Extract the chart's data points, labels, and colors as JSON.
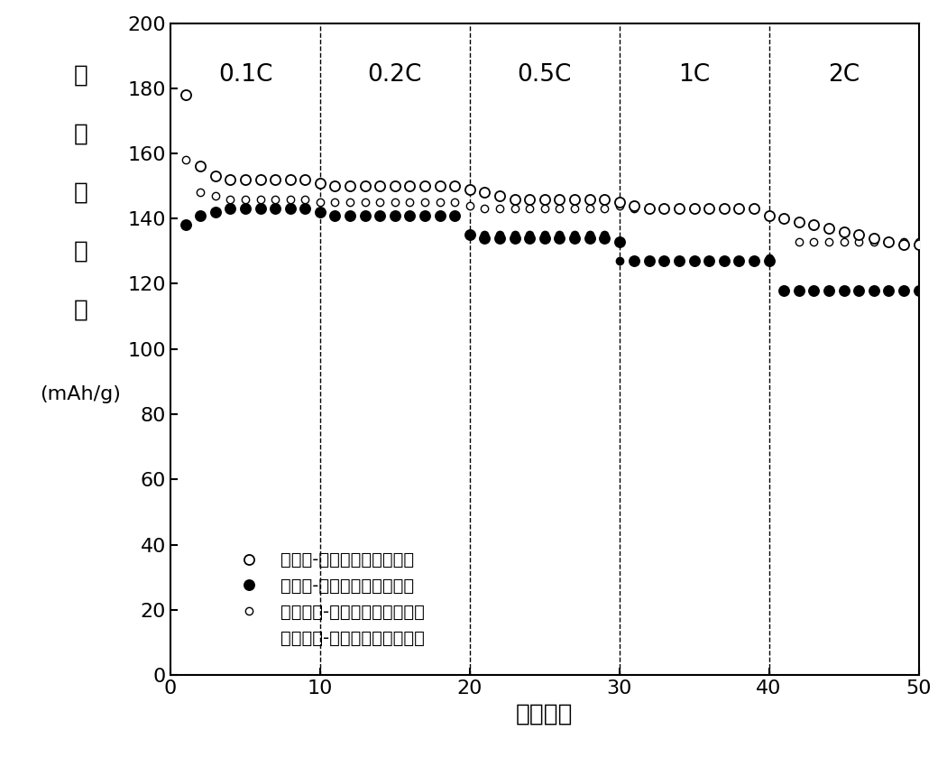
{
  "title": "",
  "xlabel": "循环次数",
  "xlim": [
    0,
    50
  ],
  "ylim": [
    0,
    200
  ],
  "yticks": [
    0,
    20,
    40,
    60,
    80,
    100,
    120,
    140,
    160,
    180,
    200
  ],
  "xticks": [
    0,
    10,
    20,
    30,
    40,
    50
  ],
  "vlines": [
    10,
    20,
    30,
    40
  ],
  "rate_labels": [
    "0.1C",
    "0.2C",
    "0.5C",
    "1C",
    "2C"
  ],
  "rate_positions": [
    5,
    15,
    25,
    35,
    45
  ],
  "rate_y": 184,
  "commercial_charge_x": [
    1,
    2,
    3,
    4,
    5,
    6,
    7,
    8,
    9,
    10,
    11,
    12,
    13,
    14,
    15,
    16,
    17,
    18,
    19,
    20,
    21,
    22,
    23,
    24,
    25,
    26,
    27,
    28,
    29,
    30,
    31,
    32,
    33,
    34,
    35,
    36,
    37,
    38,
    39,
    40,
    41,
    42,
    43,
    44,
    45,
    46,
    47,
    48,
    49,
    50
  ],
  "commercial_charge_y": [
    178,
    156,
    153,
    152,
    152,
    152,
    152,
    152,
    152,
    151,
    150,
    150,
    150,
    150,
    150,
    150,
    150,
    150,
    150,
    149,
    148,
    147,
    146,
    146,
    146,
    146,
    146,
    146,
    146,
    145,
    144,
    143,
    143,
    143,
    143,
    143,
    143,
    143,
    143,
    141,
    140,
    139,
    138,
    137,
    136,
    135,
    134,
    133,
    132,
    132
  ],
  "commercial_discharge_x": [
    1,
    2,
    3,
    4,
    5,
    6,
    7,
    8,
    9,
    10,
    11,
    12,
    13,
    14,
    15,
    16,
    17,
    18,
    19,
    20,
    21,
    22,
    23,
    24,
    25,
    26,
    27,
    28,
    29,
    30,
    31,
    32,
    33,
    34,
    35,
    36,
    37,
    38,
    39,
    40,
    41,
    42,
    43,
    44,
    45,
    46,
    47,
    48,
    49,
    50
  ],
  "commercial_discharge_y": [
    138,
    141,
    142,
    143,
    143,
    143,
    143,
    143,
    143,
    142,
    141,
    141,
    141,
    141,
    141,
    141,
    141,
    141,
    141,
    135,
    134,
    134,
    134,
    134,
    134,
    134,
    134,
    134,
    134,
    133,
    127,
    127,
    127,
    127,
    127,
    127,
    127,
    127,
    127,
    127,
    118,
    118,
    118,
    118,
    118,
    118,
    118,
    118,
    118,
    118
  ],
  "carbon_charge_x": [
    1,
    2,
    3,
    4,
    5,
    6,
    7,
    8,
    9,
    10,
    11,
    12,
    13,
    14,
    15,
    16,
    17,
    18,
    19,
    20,
    21,
    22,
    23,
    24,
    25,
    26,
    27,
    28,
    29,
    30,
    31,
    32,
    33,
    34,
    35,
    36,
    37,
    38,
    39,
    40,
    41,
    42,
    43,
    44,
    45,
    46,
    47,
    48,
    49,
    50
  ],
  "carbon_charge_y": [
    158,
    148,
    147,
    146,
    146,
    146,
    146,
    146,
    146,
    145,
    145,
    145,
    145,
    145,
    145,
    145,
    145,
    145,
    145,
    144,
    143,
    143,
    143,
    143,
    143,
    143,
    143,
    143,
    143,
    144,
    143,
    143,
    143,
    143,
    143,
    143,
    143,
    143,
    143,
    141,
    140,
    133,
    133,
    133,
    133,
    133,
    133,
    133,
    133,
    133
  ],
  "carbon_discharge_x": [
    2,
    3,
    4,
    5,
    6,
    7,
    8,
    9,
    10,
    11,
    12,
    13,
    14,
    15,
    16,
    17,
    18,
    19,
    20,
    21,
    22,
    23,
    24,
    25,
    26,
    27,
    28,
    29,
    30,
    31,
    32,
    33,
    34,
    35,
    36,
    37,
    38,
    39,
    40,
    41,
    42,
    43,
    44,
    45,
    46,
    47,
    48,
    49,
    50
  ],
  "carbon_discharge_y": [
    141,
    142,
    143,
    143,
    143,
    143,
    143,
    143,
    142,
    141,
    141,
    141,
    141,
    141,
    141,
    141,
    141,
    141,
    135,
    135,
    135,
    135,
    135,
    135,
    135,
    135,
    135,
    135,
    127,
    127,
    127,
    127,
    127,
    127,
    127,
    127,
    127,
    127,
    128,
    118,
    118,
    118,
    118,
    118,
    118,
    118,
    118,
    118,
    118
  ],
  "legend_label1": "商用锂-磷酸铁锂全电池充电",
  "legend_label2": "商用锂-磷酸铁锂全电池放电",
  "legend_label3": "碳支撑锂-磷酸铁锂全电池充电",
  "legend_label4": "碳支撑锂-磷酸铁锂全电池放电",
  "ylabel_chars": [
    "容",
    "量",
    "质",
    "量",
    "比"
  ],
  "ylabel_unit": "(mAh/g)",
  "marker_size_large": 8,
  "marker_size_small": 6,
  "font_size_tick": 16,
  "font_size_label": 19,
  "font_size_annotation": 19,
  "font_size_legend": 14,
  "font_size_ylabel_chars": 19,
  "font_size_ylabel_unit": 16
}
